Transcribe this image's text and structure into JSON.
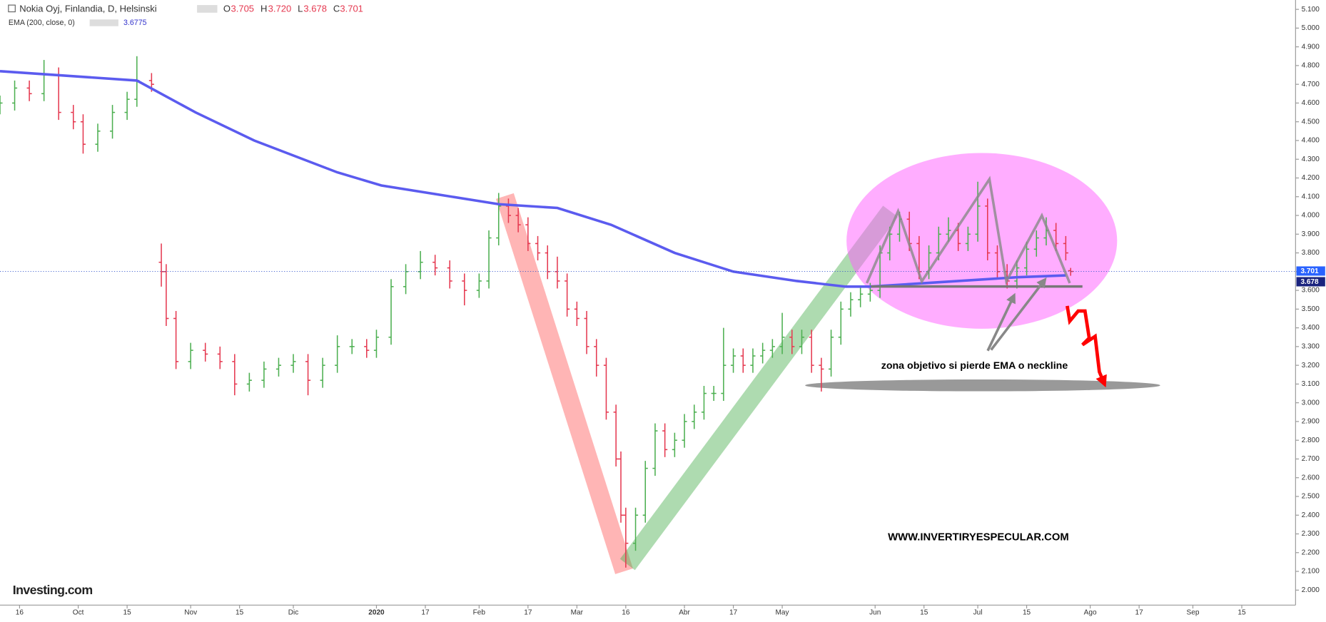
{
  "header": {
    "symbol": "Nokia Oyj, Finlandia, D, Helsinski",
    "o_label": "O",
    "open": "3.705",
    "h_label": "H",
    "high": "3.720",
    "l_label": "L",
    "low": "3.678",
    "c_label": "C",
    "close": "3.701",
    "ema_label": "EMA (200, close, 0)",
    "ema_value": "3.6775",
    "ema_axis_label": "3.678",
    "logo": "Investing.com"
  },
  "chart_data": {
    "type": "ohlc",
    "x": [
      0,
      3,
      6,
      9,
      12,
      15,
      17,
      20,
      23,
      26,
      28,
      31,
      33,
      34,
      36,
      39,
      42,
      45,
      48,
      51,
      54,
      57,
      60,
      63,
      66,
      69,
      72,
      75,
      77,
      80,
      83,
      86,
      89,
      92,
      95,
      98,
      100,
      102,
      104,
      106,
      108,
      110,
      112,
      114,
      116,
      118,
      120,
      122,
      124,
      126,
      127,
      128,
      130,
      132,
      134,
      136,
      138,
      140,
      142,
      144,
      146,
      148,
      150,
      152,
      154,
      156,
      158,
      160,
      162,
      164,
      166,
      168,
      170,
      172,
      174,
      176,
      178,
      180,
      182,
      184,
      186,
      188,
      190,
      192,
      194,
      196,
      198,
      200,
      202,
      204,
      206,
      208,
      210,
      212,
      214,
      216,
      218,
      219
    ],
    "series": [
      {
        "name": "Nokia Oyj",
        "up_color": "#4caf50",
        "down_color": "#e53950",
        "values": [
          [
            4.58,
            4.64,
            4.54,
            4.6
          ],
          [
            4.6,
            4.72,
            4.56,
            4.68
          ],
          [
            4.68,
            4.72,
            4.61,
            4.65
          ],
          [
            4.65,
            4.83,
            4.61,
            4.75
          ],
          [
            4.75,
            4.79,
            4.51,
            4.55
          ],
          [
            4.55,
            4.59,
            4.46,
            4.5
          ],
          [
            4.5,
            4.54,
            4.33,
            4.38
          ],
          [
            4.38,
            4.49,
            4.34,
            4.45
          ],
          [
            4.45,
            4.59,
            4.41,
            4.55
          ],
          [
            4.55,
            4.66,
            4.51,
            4.62
          ],
          [
            4.62,
            4.85,
            4.58,
            4.72
          ],
          [
            4.72,
            4.76,
            4.66,
            4.7
          ],
          [
            3.75,
            3.85,
            3.62,
            3.7
          ],
          [
            3.7,
            3.74,
            3.41,
            3.45
          ],
          [
            3.45,
            3.49,
            3.18,
            3.22
          ],
          [
            3.22,
            3.32,
            3.18,
            3.28
          ],
          [
            3.28,
            3.32,
            3.22,
            3.26
          ],
          [
            3.26,
            3.3,
            3.18,
            3.22
          ],
          [
            3.22,
            3.26,
            3.04,
            3.1
          ],
          [
            3.1,
            3.16,
            3.06,
            3.12
          ],
          [
            3.12,
            3.22,
            3.08,
            3.18
          ],
          [
            3.18,
            3.24,
            3.14,
            3.2
          ],
          [
            3.2,
            3.26,
            3.16,
            3.22
          ],
          [
            3.22,
            3.26,
            3.04,
            3.12
          ],
          [
            3.12,
            3.24,
            3.08,
            3.2
          ],
          [
            3.2,
            3.36,
            3.16,
            3.3
          ],
          [
            3.3,
            3.34,
            3.26,
            3.3
          ],
          [
            3.3,
            3.34,
            3.24,
            3.28
          ],
          [
            3.28,
            3.39,
            3.24,
            3.35
          ],
          [
            3.35,
            3.66,
            3.31,
            3.62
          ],
          [
            3.62,
            3.74,
            3.58,
            3.7
          ],
          [
            3.7,
            3.81,
            3.66,
            3.75
          ],
          [
            3.75,
            3.79,
            3.68,
            3.72
          ],
          [
            3.72,
            3.76,
            3.61,
            3.65
          ],
          [
            3.65,
            3.69,
            3.52,
            3.6
          ],
          [
            3.6,
            3.69,
            3.56,
            3.65
          ],
          [
            3.65,
            3.92,
            3.61,
            3.88
          ],
          [
            3.88,
            4.12,
            3.84,
            4.05
          ],
          [
            4.05,
            4.09,
            3.96,
            4.0
          ],
          [
            4.0,
            4.04,
            3.91,
            3.95
          ],
          [
            3.95,
            3.99,
            3.81,
            3.85
          ],
          [
            3.85,
            3.89,
            3.76,
            3.8
          ],
          [
            3.8,
            3.84,
            3.66,
            3.7
          ],
          [
            3.7,
            3.78,
            3.61,
            3.65
          ],
          [
            3.65,
            3.69,
            3.46,
            3.5
          ],
          [
            3.5,
            3.54,
            3.41,
            3.45
          ],
          [
            3.45,
            3.49,
            3.26,
            3.3
          ],
          [
            3.3,
            3.34,
            3.14,
            3.2
          ],
          [
            3.2,
            3.24,
            2.91,
            2.95
          ],
          [
            2.95,
            2.99,
            2.66,
            2.7
          ],
          [
            2.7,
            2.74,
            2.36,
            2.4
          ],
          [
            2.4,
            2.44,
            2.12,
            2.25
          ],
          [
            2.25,
            2.44,
            2.21,
            2.4
          ],
          [
            2.4,
            2.69,
            2.36,
            2.65
          ],
          [
            2.65,
            2.89,
            2.61,
            2.85
          ],
          [
            2.85,
            2.89,
            2.71,
            2.75
          ],
          [
            2.75,
            2.84,
            2.71,
            2.8
          ],
          [
            2.8,
            2.94,
            2.76,
            2.9
          ],
          [
            2.9,
            2.99,
            2.86,
            2.95
          ],
          [
            2.95,
            3.09,
            2.91,
            3.05
          ],
          [
            3.05,
            3.09,
            3.01,
            3.05
          ],
          [
            3.05,
            3.4,
            3.01,
            3.2
          ],
          [
            3.2,
            3.29,
            3.16,
            3.25
          ],
          [
            3.25,
            3.29,
            3.16,
            3.2
          ],
          [
            3.2,
            3.29,
            3.16,
            3.25
          ],
          [
            3.25,
            3.32,
            3.21,
            3.28
          ],
          [
            3.28,
            3.34,
            3.24,
            3.3
          ],
          [
            3.3,
            3.48,
            3.26,
            3.35
          ],
          [
            3.35,
            3.39,
            3.26,
            3.3
          ],
          [
            3.3,
            3.39,
            3.26,
            3.35
          ],
          [
            3.35,
            3.39,
            3.16,
            3.2
          ],
          [
            3.2,
            3.24,
            3.06,
            3.18
          ],
          [
            3.18,
            3.39,
            3.14,
            3.35
          ],
          [
            3.35,
            3.54,
            3.31,
            3.5
          ],
          [
            3.5,
            3.59,
            3.46,
            3.55
          ],
          [
            3.55,
            3.62,
            3.51,
            3.58
          ],
          [
            3.58,
            3.64,
            3.54,
            3.6
          ],
          [
            3.6,
            3.84,
            3.56,
            3.8
          ],
          [
            3.8,
            3.94,
            3.76,
            3.9
          ],
          [
            3.9,
            4.02,
            3.86,
            3.98
          ],
          [
            3.98,
            4.02,
            3.81,
            3.85
          ],
          [
            3.85,
            3.89,
            3.66,
            3.7
          ],
          [
            3.7,
            3.84,
            3.66,
            3.8
          ],
          [
            3.8,
            3.94,
            3.76,
            3.9
          ],
          [
            3.9,
            3.99,
            3.86,
            3.92
          ],
          [
            3.92,
            3.96,
            3.81,
            3.85
          ],
          [
            3.85,
            3.94,
            3.81,
            3.9
          ],
          [
            3.9,
            4.18,
            3.86,
            4.05
          ],
          [
            4.05,
            4.09,
            3.76,
            3.8
          ],
          [
            3.8,
            3.84,
            3.66,
            3.7
          ],
          [
            3.7,
            3.74,
            3.61,
            3.65
          ],
          [
            3.65,
            3.76,
            3.61,
            3.72
          ],
          [
            3.72,
            3.86,
            3.68,
            3.82
          ],
          [
            3.82,
            3.92,
            3.78,
            3.88
          ],
          [
            3.88,
            3.99,
            3.84,
            3.92
          ],
          [
            3.92,
            3.96,
            3.81,
            3.85
          ],
          [
            3.85,
            3.89,
            3.76,
            3.8
          ],
          [
            3.705,
            3.72,
            3.678,
            3.701
          ]
        ]
      }
    ],
    "ema": {
      "name": "EMA (200, close, 0)",
      "color": "#5b5bef",
      "x": [
        0,
        28,
        40,
        52,
        69,
        78,
        90,
        102,
        114,
        125,
        138,
        150,
        163,
        173,
        178,
        190,
        208,
        218
      ],
      "values": [
        4.77,
        4.72,
        4.55,
        4.4,
        4.23,
        4.16,
        4.11,
        4.06,
        4.04,
        3.95,
        3.8,
        3.7,
        3.65,
        3.62,
        3.62,
        3.64,
        3.67,
        3.68
      ]
    },
    "xlim": [
      0,
      265
    ],
    "ylim": [
      1.92,
      5.15
    ],
    "xticks": [
      {
        "value": 4,
        "label": "16"
      },
      {
        "value": 16,
        "label": "Oct"
      },
      {
        "value": 26,
        "label": "15"
      },
      {
        "value": 39,
        "label": "Nov"
      },
      {
        "value": 49,
        "label": "15"
      },
      {
        "value": 60,
        "label": "Dic"
      },
      {
        "value": 77,
        "label": "2020"
      },
      {
        "value": 87,
        "label": "17"
      },
      {
        "value": 98,
        "label": "Feb"
      },
      {
        "value": 108,
        "label": "17"
      },
      {
        "value": 118,
        "label": "Mar"
      },
      {
        "value": 128,
        "label": "16"
      },
      {
        "value": 140,
        "label": "Abr"
      },
      {
        "value": 150,
        "label": "17"
      },
      {
        "value": 160,
        "label": "May"
      },
      {
        "value": 179,
        "label": "Jun"
      },
      {
        "value": 189,
        "label": "15"
      },
      {
        "value": 200,
        "label": "Jul"
      },
      {
        "value": 210,
        "label": "15"
      },
      {
        "value": 223,
        "label": "Ago"
      },
      {
        "value": 233,
        "label": "17"
      },
      {
        "value": 244,
        "label": "Sep"
      },
      {
        "value": 254,
        "label": "15"
      }
    ],
    "yticks": [
      {
        "value": 2.0,
        "label": "2.000"
      },
      {
        "value": 2.1,
        "label": "2.100"
      },
      {
        "value": 2.2,
        "label": "2.200"
      },
      {
        "value": 2.3,
        "label": "2.300"
      },
      {
        "value": 2.4,
        "label": "2.400"
      },
      {
        "value": 2.5,
        "label": "2.500"
      },
      {
        "value": 2.6,
        "label": "2.600"
      },
      {
        "value": 2.7,
        "label": "2.700"
      },
      {
        "value": 2.8,
        "label": "2.800"
      },
      {
        "value": 2.9,
        "label": "2.900"
      },
      {
        "value": 3.0,
        "label": "3.000"
      },
      {
        "value": 3.1,
        "label": "3.100"
      },
      {
        "value": 3.2,
        "label": "3.200"
      },
      {
        "value": 3.3,
        "label": "3.300"
      },
      {
        "value": 3.4,
        "label": "3.400"
      },
      {
        "value": 3.5,
        "label": "3.500"
      },
      {
        "value": 3.6,
        "label": "3.600"
      },
      {
        "value": 3.7,
        "label": "3.700"
      },
      {
        "value": 3.8,
        "label": "3.800"
      },
      {
        "value": 3.9,
        "label": "3.900"
      },
      {
        "value": 4.0,
        "label": "4.000"
      },
      {
        "value": 4.1,
        "label": "4.100"
      },
      {
        "value": 4.2,
        "label": "4.200"
      },
      {
        "value": 4.3,
        "label": "4.300"
      },
      {
        "value": 4.4,
        "label": "4.400"
      },
      {
        "value": 4.5,
        "label": "4.500"
      },
      {
        "value": 4.6,
        "label": "4.600"
      },
      {
        "value": 4.7,
        "label": "4.700"
      },
      {
        "value": 4.8,
        "label": "4.800"
      },
      {
        "value": 4.9,
        "label": "4.900"
      },
      {
        "value": 5.0,
        "label": "5.000"
      },
      {
        "value": 5.1,
        "label": "5.100"
      }
    ],
    "annotations": [
      "zona objetivo si pierde EMA o neckline",
      "WWW.INVERTIRYESPECULAR.COM"
    ]
  }
}
